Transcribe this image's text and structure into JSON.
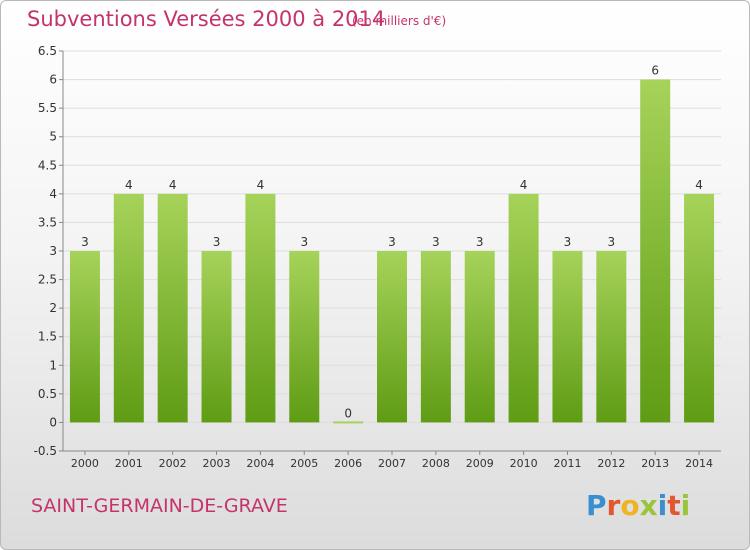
{
  "title": "Subventions Versées 2000 à 2014",
  "subtitle": "(en milliers d'€)",
  "commune": "SAINT-GERMAIN-DE-GRAVE",
  "logo": {
    "letters": [
      {
        "char": "P",
        "color": "#3a8fd0"
      },
      {
        "char": "r",
        "color": "#e3572e"
      },
      {
        "char": "o",
        "color": "#f0b423"
      },
      {
        "char": "x",
        "color": "#9ac43b"
      },
      {
        "char": "i",
        "color": "#3a8fd0"
      },
      {
        "char": "t",
        "color": "#e3572e"
      },
      {
        "char": "i",
        "color": "#9ac43b"
      }
    ]
  },
  "colors": {
    "bar_light": "#a6d35a",
    "bar_dark": "#5f9c14",
    "axis_text": "#333333",
    "grid": "#dddddd",
    "accent": "#c5336c"
  },
  "chart_data": {
    "type": "bar",
    "categories": [
      "2000",
      "2001",
      "2002",
      "2003",
      "2004",
      "2005",
      "2006",
      "2007",
      "2008",
      "2009",
      "2010",
      "2011",
      "2012",
      "2013",
      "2014"
    ],
    "values": [
      3,
      4,
      4,
      3,
      4,
      3,
      0,
      3,
      3,
      3,
      4,
      3,
      3,
      6,
      4
    ],
    "data_labels": [
      "3",
      "4",
      "4",
      "3",
      "4",
      "3",
      "0",
      "3",
      "3",
      "3",
      "4",
      "3",
      "3",
      "6",
      "4"
    ],
    "yticks": [
      "-0.5",
      "0",
      "0.5",
      "1",
      "1.5",
      "2",
      "2.5",
      "3",
      "3.5",
      "4",
      "4.5",
      "5",
      "5.5",
      "6",
      "6.5"
    ],
    "ylim": [
      -0.5,
      6.5
    ],
    "grid": true,
    "legend": "none"
  }
}
